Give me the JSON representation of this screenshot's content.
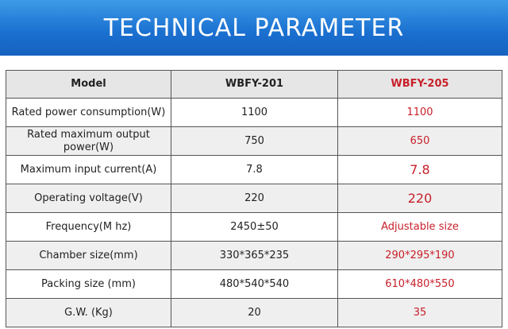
{
  "header": {
    "title": "TECHNICAL PARAMETER"
  },
  "table": {
    "columns": [
      "Model",
      "WBFY-201",
      "WBFY-205"
    ],
    "rows": [
      [
        "Rated power consumption(W)",
        "1100",
        "1100"
      ],
      [
        "Rated maximum output power(W)",
        "750",
        "650"
      ],
      [
        "Maximum input current(A)",
        "7.8",
        "7.8"
      ],
      [
        "Operating voltage(V)",
        "220",
        "220"
      ],
      [
        "Frequency(M hz)",
        "2450±50",
        "Adjustable size"
      ],
      [
        "Chamber size(mm)",
        "330*365*235",
        "290*295*190"
      ],
      [
        "Packing size (mm)",
        "480*540*540",
        "610*480*550"
      ],
      [
        "G.W. (Kg)",
        "20",
        "35"
      ]
    ]
  }
}
